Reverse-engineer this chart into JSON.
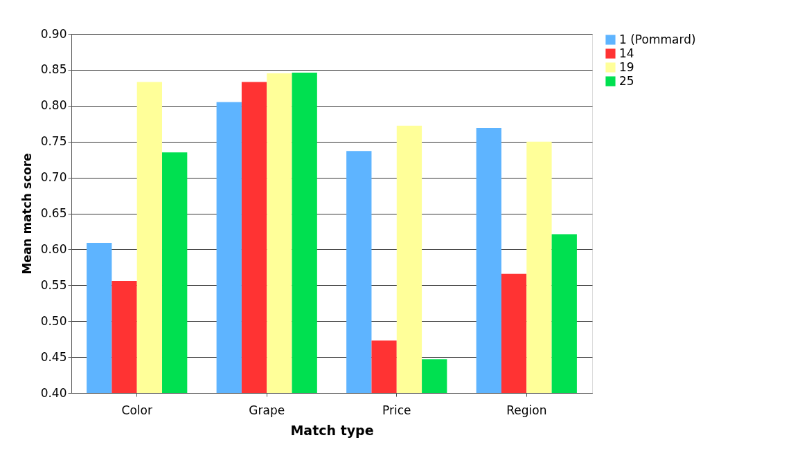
{
  "chart_data": {
    "type": "bar",
    "xlabel": "Match type",
    "ylabel": "Mean match score",
    "categories": [
      "Color",
      "Grape",
      "Price",
      "Region"
    ],
    "series": [
      {
        "name": "1 (Pommard)",
        "color": "#5eb4ff",
        "values": [
          0.609,
          0.805,
          0.737,
          0.769
        ]
      },
      {
        "name": "14",
        "color": "#ff3333",
        "values": [
          0.556,
          0.833,
          0.473,
          0.566
        ]
      },
      {
        "name": "19",
        "color": "#ffff99",
        "values": [
          0.833,
          0.845,
          0.772,
          0.75
        ]
      },
      {
        "name": "25",
        "color": "#00e050",
        "values": [
          0.735,
          0.846,
          0.447,
          0.621
        ]
      }
    ],
    "ylim": [
      0.4,
      0.9
    ],
    "yticks": [
      {
        "value": 0.4,
        "label": "0.40"
      },
      {
        "value": 0.45,
        "label": "0.45"
      },
      {
        "value": 0.5,
        "label": "0.50"
      },
      {
        "value": 0.55,
        "label": "0.55"
      },
      {
        "value": 0.6,
        "label": "0.60"
      },
      {
        "value": 0.65,
        "label": "0.65"
      },
      {
        "value": 0.7,
        "label": "0.70"
      },
      {
        "value": 0.75,
        "label": "0.75"
      },
      {
        "value": 0.8,
        "label": "0.80"
      },
      {
        "value": 0.85,
        "label": "0.85"
      },
      {
        "value": 0.9,
        "label": "0.90"
      }
    ],
    "grid": "y",
    "legend": "right"
  }
}
